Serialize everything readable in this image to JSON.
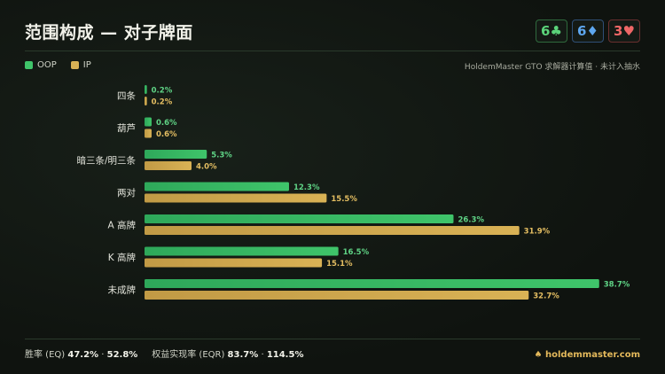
{
  "header": {
    "title": "范围构成 — 对子牌面",
    "cards": [
      {
        "rank": "6",
        "suit": "♣",
        "color": "#5bd37a"
      },
      {
        "rank": "6",
        "suit": "♦",
        "color": "#5ea7ef"
      },
      {
        "rank": "3",
        "suit": "♥",
        "color": "#ef6767"
      }
    ]
  },
  "legend": {
    "oop": "OOP",
    "ip": "IP",
    "note": "HoldemMaster GTO 求解器计算值 · 未计入抽水"
  },
  "colors": {
    "oop": "#3fc46a",
    "ip": "#d9b255"
  },
  "chart_data": {
    "type": "bar",
    "orientation": "horizontal",
    "categories": [
      "四条",
      "葫芦",
      "暗三条/明三条",
      "两对",
      "A 高牌",
      "K 高牌",
      "未成牌"
    ],
    "series": [
      {
        "name": "OOP",
        "values": [
          0.2,
          0.6,
          5.3,
          12.3,
          26.3,
          16.5,
          38.7
        ],
        "labels": [
          "0.2%",
          "0.6%",
          "5.3%",
          "12.3%",
          "26.3%",
          "16.5%",
          "38.7%"
        ]
      },
      {
        "name": "IP",
        "values": [
          0.2,
          0.6,
          4.0,
          15.5,
          31.9,
          15.1,
          32.7
        ],
        "labels": [
          "0.2%",
          "0.6%",
          "4.0%",
          "15.5%",
          "31.9%",
          "15.1%",
          "32.7%"
        ]
      }
    ],
    "xlim": [
      0,
      40
    ],
    "grid": false,
    "legend": "top-left"
  },
  "footer": {
    "eq_label": "胜率 (EQ)",
    "eq_oop": "47.2%",
    "eq_ip": "52.8%",
    "eqr_label": "权益实现率 (EQR)",
    "eqr_oop": "83.7%",
    "eqr_ip": "114.5%",
    "sep": "·",
    "brand": "♠ holdemmaster.com"
  }
}
